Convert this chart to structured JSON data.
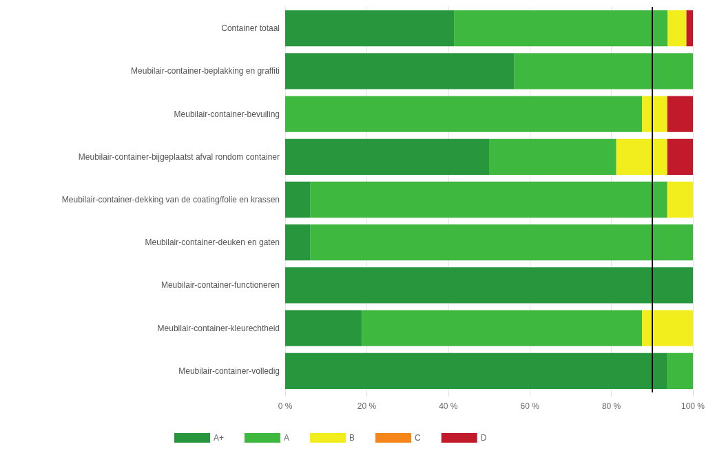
{
  "chart_data": {
    "type": "bar",
    "orientation": "horizontal",
    "stacked": true,
    "categories": [
      "Container totaal",
      "Meubilair-container-beplakking en graffiti",
      "Meubilair-container-bevuiling",
      "Meubilair-container-bijgeplaatst afval rondom container",
      "Meubilair-container-dekking van de coating/folie en krassen",
      "Meubilair-container-deuken en gaten",
      "Meubilair-container-functioneren",
      "Meubilair-container-kleurechtheid",
      "Meubilair-container-volledig"
    ],
    "series": [
      {
        "name": "A+",
        "color": "#27963c",
        "values": [
          41.4,
          56.2,
          0,
          50,
          6.2,
          6.2,
          100,
          18.8,
          93.8
        ]
      },
      {
        "name": "A",
        "color": "#3fb83f",
        "values": [
          52.4,
          43.8,
          87.5,
          31.2,
          87.5,
          93.8,
          0,
          68.7,
          6.2
        ]
      },
      {
        "name": "B",
        "color": "#f2ee1e",
        "values": [
          4.6,
          0,
          6.2,
          12.5,
          6.3,
          0,
          0,
          12.5,
          0
        ]
      },
      {
        "name": "C",
        "color": "#f7861a",
        "values": [
          0,
          0,
          0,
          0,
          0,
          0,
          0,
          0,
          0
        ]
      },
      {
        "name": "D",
        "color": "#c01a2b",
        "values": [
          1.6,
          0,
          6.3,
          6.3,
          0,
          0,
          0,
          0,
          0
        ]
      }
    ],
    "xlim": [
      0,
      100
    ],
    "xticks": [
      {
        "value": 0,
        "label": "0 %"
      },
      {
        "value": 20,
        "label": "20 %"
      },
      {
        "value": 40,
        "label": "40 %"
      },
      {
        "value": 60,
        "label": "60 %"
      },
      {
        "value": 80,
        "label": "80 %"
      },
      {
        "value": 100,
        "label": "100 %"
      }
    ],
    "grid": "x",
    "legend": "bottom left",
    "ref_lines": [
      {
        "axis": "x",
        "value": 90,
        "color": "#000000",
        "line_style": "solid"
      }
    ]
  }
}
